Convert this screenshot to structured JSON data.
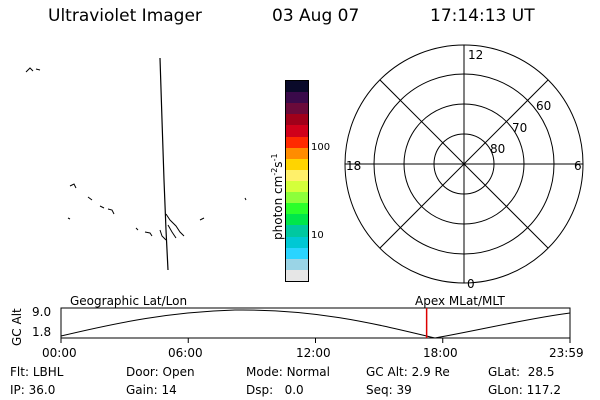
{
  "header": {
    "instrument": "Ultraviolet Imager",
    "date": "03 Aug 07",
    "time": "17:14:13 UT"
  },
  "colorbar": {
    "unit_label": "photon cm",
    "unit_exp1": "-2",
    "unit_s": "s",
    "unit_exp2": "-1",
    "tick_100": "100",
    "tick_10": "10",
    "colors_top_to_bottom": [
      "#0a0a2a",
      "#3a0a4a",
      "#6a0a3a",
      "#a0001a",
      "#d0001a",
      "#ff2a00",
      "#ff8c00",
      "#ffd400",
      "#fff06a",
      "#d4ff3a",
      "#8cff3a",
      "#2aff2a",
      "#00e64a",
      "#00c8a0",
      "#00c8d4",
      "#2ad4ff",
      "#9ad4e6",
      "#e6e6e6"
    ]
  },
  "polar": {
    "label_top": "12",
    "label_left": "18",
    "label_right": "6",
    "label_bottom": "0",
    "lat_60": "60",
    "lat_70": "70",
    "lat_80": "80"
  },
  "timeline": {
    "left_title": "Geographic Lat/Lon",
    "right_title": "Apex MLat/MLT",
    "axis_label": "GC Alt",
    "y_max": "9.0",
    "y_min": "1.8",
    "ticks": [
      "00:00",
      "06:00",
      "12:00",
      "18:00",
      "23:59"
    ],
    "current_time_hours": 17.24,
    "marker_color": "#dd0000"
  },
  "status": {
    "filter_label": "Flt:",
    "filter_value": "LBHL",
    "ip_label": "IP:",
    "ip_value": "36.0",
    "door_label": "Door:",
    "door_value": "Open",
    "gain_label": "Gain:",
    "gain_value": "14",
    "mode_label": "Mode:",
    "mode_value": "Normal",
    "dsp_label": "Dsp:",
    "dsp_value": "0.0",
    "gcalt_label": "GC Alt:",
    "gcalt_value": "2.9 Re",
    "seq_label": "Seq:",
    "seq_value": "39",
    "glat_label": "GLat:",
    "glat_value": "28.5",
    "glon_label": "GLon:",
    "glon_value": "117.2"
  }
}
